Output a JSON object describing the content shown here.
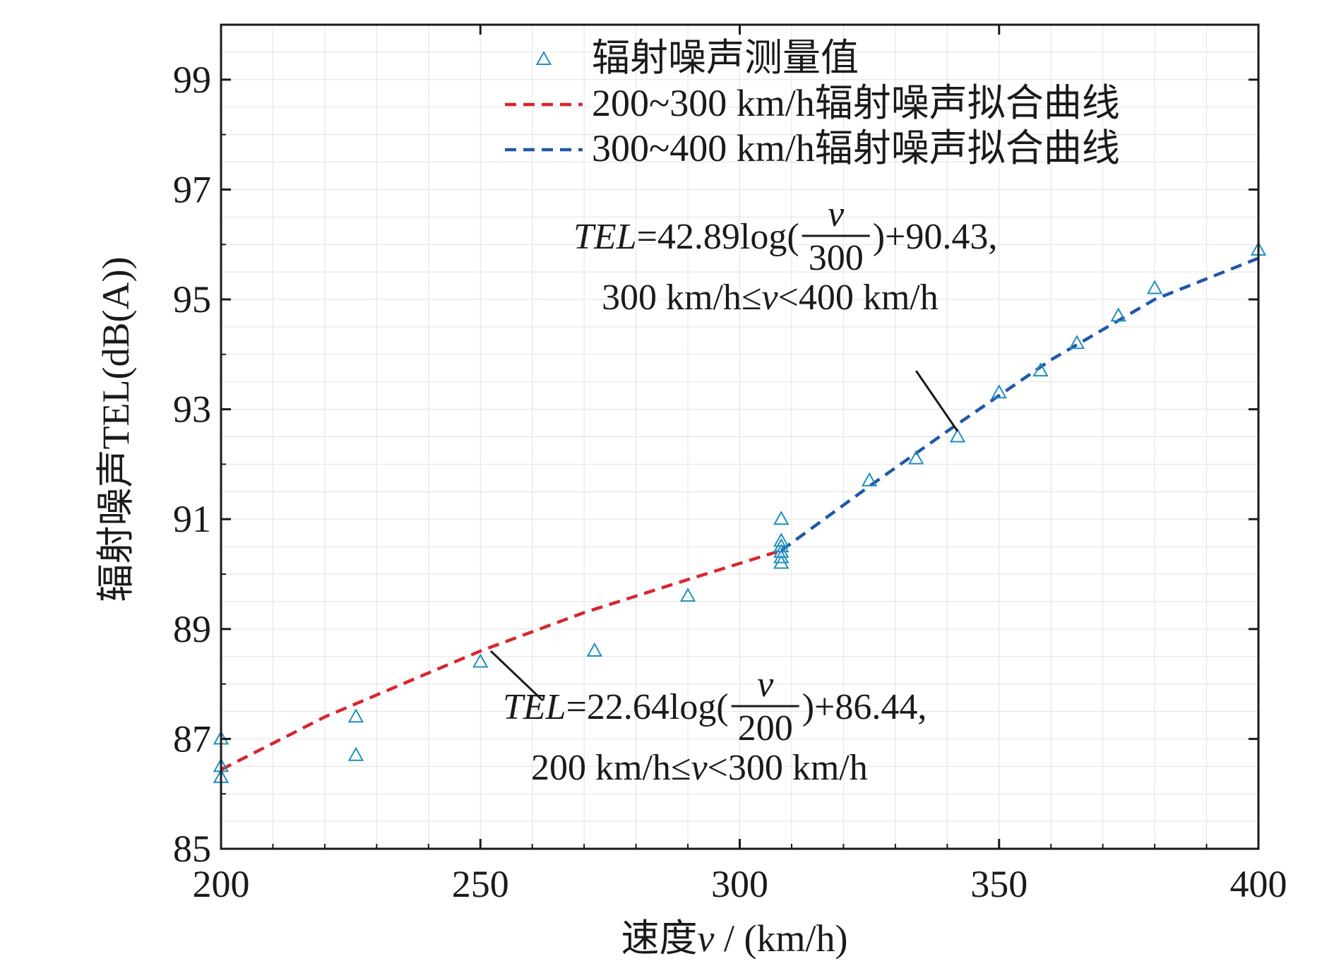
{
  "chart_data": {
    "type": "scatter",
    "title": "",
    "xlabel": {
      "prefix": "速度",
      "var": "v",
      "suffix": " / (km/h)"
    },
    "ylabel": "辐射噪声TEL(dB(A))",
    "xlim": [
      200,
      400
    ],
    "ylim": [
      85,
      100
    ],
    "x_ticks": [
      200,
      250,
      300,
      350,
      400
    ],
    "y_ticks": [
      85,
      87,
      89,
      91,
      93,
      95,
      97,
      99
    ],
    "grid": true,
    "legend_position": "top-right",
    "series": [
      {
        "name": "辐射噪声测量值",
        "kind": "scatter",
        "marker": "triangle",
        "color": "#1f8fbf",
        "points": [
          [
            200,
            87.0
          ],
          [
            200,
            86.5
          ],
          [
            200,
            86.3
          ],
          [
            226,
            87.4
          ],
          [
            226,
            86.7
          ],
          [
            250,
            88.4
          ],
          [
            272,
            88.6
          ],
          [
            290,
            89.6
          ],
          [
            308,
            91.0
          ],
          [
            308,
            90.6
          ],
          [
            308,
            90.5
          ],
          [
            308,
            90.4
          ],
          [
            308,
            90.3
          ],
          [
            308,
            90.2
          ],
          [
            325,
            91.7
          ],
          [
            334,
            92.1
          ],
          [
            342,
            92.5
          ],
          [
            350,
            93.3
          ],
          [
            358,
            93.7
          ],
          [
            365,
            94.2
          ],
          [
            373,
            94.7
          ],
          [
            380,
            95.2
          ],
          [
            400,
            95.9
          ]
        ]
      },
      {
        "name": "200~300 km/h辐射噪声拟合曲线",
        "kind": "line",
        "dash": true,
        "color": "#d9262e",
        "points": [
          [
            200,
            86.44
          ],
          [
            220,
            87.4
          ],
          [
            250,
            88.6
          ],
          [
            270,
            89.3
          ],
          [
            290,
            89.9
          ],
          [
            308,
            90.43
          ]
        ]
      },
      {
        "name": "300~400 km/h辐射噪声拟合曲线",
        "kind": "line",
        "dash": true,
        "color": "#2058a8",
        "points": [
          [
            308,
            90.43
          ],
          [
            325,
            91.6
          ],
          [
            340,
            92.6
          ],
          [
            360,
            93.9
          ],
          [
            380,
            95.0
          ],
          [
            400,
            95.75
          ]
        ]
      }
    ],
    "annotations": [
      {
        "id": "upper",
        "eq_var": "TEL",
        "eq_pre": "=42.89log(",
        "frac_num": "v",
        "frac_den": "300",
        "eq_post": ")+90.43,",
        "range_pre": "300 km/h≤",
        "range_var": "v",
        "range_post": "<400 km/h",
        "pointer_from": [
          334,
          93.7
        ],
        "pointer_to": [
          342,
          92.6
        ]
      },
      {
        "id": "lower",
        "eq_var": "TEL",
        "eq_pre": "=22.64log(",
        "frac_num": "v",
        "frac_den": "200",
        "eq_post": ")+86.44,",
        "range_pre": "200 km/h≤",
        "range_var": "v",
        "range_post": "<300 km/h",
        "pointer_from": [
          262,
          87.7
        ],
        "pointer_to": [
          252,
          88.6
        ]
      }
    ]
  },
  "colors": {
    "axis": "#1a1a1a",
    "grid": "#e2e2e2",
    "marker": "#1f8fbf",
    "fit_low": "#d9262e",
    "fit_high": "#2058a8"
  }
}
